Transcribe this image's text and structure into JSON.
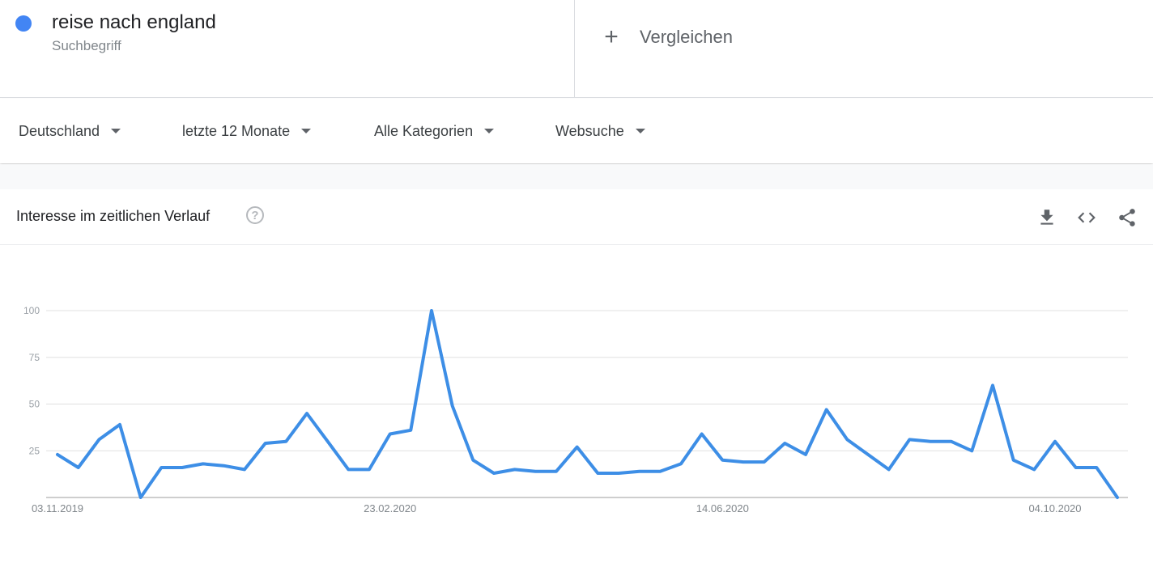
{
  "term": {
    "name": "reise nach england",
    "type": "Suchbegriff",
    "color": "#4285f4"
  },
  "compare": {
    "label": "Vergleichen",
    "icon": "plus-icon"
  },
  "filters": [
    {
      "label": "Deutschland"
    },
    {
      "label": "letzte 12 Monate"
    },
    {
      "label": "Alle Kategorien"
    },
    {
      "label": "Websuche"
    }
  ],
  "card": {
    "title": "Interesse im zeitlichen Verlauf",
    "icons": [
      "help-icon",
      "download-icon",
      "embed-code-icon",
      "share-icon"
    ]
  },
  "chart_data": {
    "type": "line",
    "title": "Interesse im zeitlichen Verlauf",
    "xlabel": "",
    "ylabel": "",
    "ylim": [
      0,
      100
    ],
    "yticks": [
      25,
      50,
      75,
      100
    ],
    "xticks": [
      "03.11.2019",
      "23.02.2020",
      "14.06.2020",
      "04.10.2020"
    ],
    "grid": true,
    "line_color": "#3d8ee6",
    "series": [
      {
        "values": [
          23,
          16,
          31,
          39,
          0,
          16,
          16,
          18,
          17,
          15,
          29,
          30,
          45,
          30,
          15,
          15,
          34,
          36,
          100,
          49,
          20,
          13,
          15,
          14,
          14,
          27,
          13,
          13,
          14,
          14,
          18,
          34,
          20,
          19,
          19,
          29,
          23,
          47,
          31,
          23,
          15,
          31,
          30,
          30,
          25,
          60,
          20,
          15,
          30,
          16,
          16,
          0
        ]
      }
    ]
  }
}
